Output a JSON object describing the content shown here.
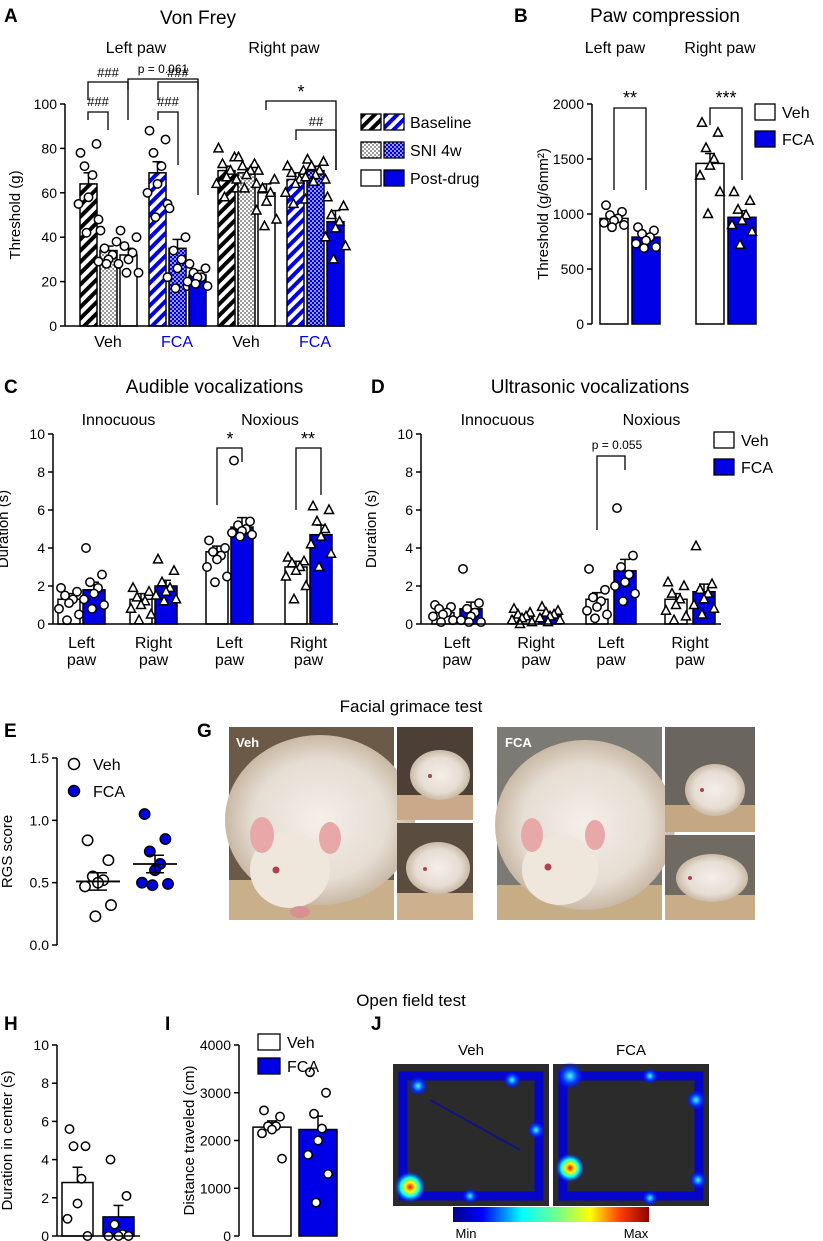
{
  "colors": {
    "fca_blue": "#0000e6",
    "black": "#000000",
    "white": "#ffffff"
  },
  "panels": {
    "A": {
      "letter": "A",
      "title": "Von Frey",
      "group_labels": [
        "Left paw",
        "Right paw"
      ],
      "x_labels": [
        "Veh",
        "FCA",
        "Veh",
        "FCA"
      ],
      "annotations": [
        "###",
        "###",
        "###",
        "###",
        "p = 0.061",
        "*",
        "##"
      ]
    },
    "B": {
      "letter": "B",
      "title": "Paw compression",
      "group_labels": [
        "Left paw",
        "Right paw"
      ],
      "annotations": [
        "**",
        "***"
      ]
    },
    "C": {
      "letter": "C",
      "title": "Audible vocalizations",
      "group_labels": [
        "Innocuous",
        "Noxious"
      ],
      "x_labels": [
        "Left\npaw",
        "Right\npaw",
        "Left\npaw",
        "Right\npaw"
      ],
      "annotations": [
        "*",
        "**"
      ]
    },
    "D": {
      "letter": "D",
      "title": "Ultrasonic vocalizations",
      "group_labels": [
        "Innocuous",
        "Noxious"
      ],
      "x_labels": [
        "Left\npaw",
        "Right\npaw",
        "Left\npaw",
        "Right\npaw"
      ],
      "annotations": [
        "p = 0.055"
      ]
    },
    "E": {
      "letter": "E"
    },
    "G": {
      "letter": "G",
      "photo_labels": [
        "Veh",
        "FCA"
      ]
    },
    "H": {
      "letter": "H"
    },
    "I": {
      "letter": "I"
    },
    "J": {
      "letter": "J",
      "map_labels": [
        "Veh",
        "FCA"
      ],
      "colorbar": {
        "min": "Min",
        "max": "Max"
      }
    }
  },
  "section_titles": {
    "grimace": "Facial grimace test",
    "open_field": "Open field test"
  },
  "legends": {
    "A": [
      "Baseline",
      "SNI 4w",
      "Post-drug"
    ],
    "B": [
      "Veh",
      "FCA"
    ],
    "D": [
      "Veh",
      "FCA"
    ],
    "E": [
      "Veh",
      "FCA"
    ],
    "I": [
      "Veh",
      "FCA"
    ]
  },
  "chart_data": [
    {
      "id": "A",
      "type": "bar",
      "title": "Von Frey",
      "ylabel": "Threshold (g)",
      "ylim": [
        0,
        100
      ],
      "yticks": [
        0,
        20,
        40,
        60,
        80,
        100
      ],
      "categories": [
        "Left paw Veh",
        "Left paw FCA",
        "Right paw Veh",
        "Right paw FCA"
      ],
      "series": [
        {
          "name": "Baseline",
          "values": [
            64,
            69,
            70,
            66
          ]
        },
        {
          "name": "SNI 4w",
          "values": [
            34,
            35,
            69,
            70
          ]
        },
        {
          "name": "Post-drug",
          "values": [
            32,
            23,
            60,
            47
          ]
        }
      ],
      "points": [
        [
          64,
          [
            78,
            82,
            72,
            68,
            58,
            55,
            48,
            42
          ]
        ],
        [
          34,
          [
            43,
            38,
            35,
            32,
            30,
            29,
            28,
            28
          ]
        ],
        [
          32,
          [
            43,
            40,
            36,
            33,
            30,
            28,
            24,
            24
          ]
        ],
        [
          69,
          [
            88,
            84,
            78,
            72,
            64,
            60,
            55,
            49
          ]
        ],
        [
          35,
          [
            53,
            40,
            34,
            30,
            26,
            22,
            18,
            17
          ]
        ],
        [
          23,
          [
            28,
            26,
            24,
            22,
            22,
            20,
            18,
            19
          ]
        ],
        [
          70,
          [
            80,
            76,
            73,
            70,
            67,
            64,
            62,
            58
          ]
        ],
        [
          69,
          [
            76,
            73,
            72,
            70,
            68,
            66,
            64,
            62
          ]
        ],
        [
          60,
          [
            70,
            66,
            62,
            60,
            56,
            52,
            48,
            45
          ]
        ],
        [
          66,
          [
            72,
            70,
            69,
            66,
            64,
            60,
            57,
            55
          ]
        ],
        [
          70,
          [
            75,
            74,
            72,
            70,
            68,
            67,
            66,
            65
          ]
        ],
        [
          47,
          [
            58,
            54,
            50,
            47,
            44,
            40,
            36,
            30
          ]
        ]
      ],
      "markers": [
        "circle",
        "circle",
        "circle",
        "circle",
        "circle",
        "circle",
        "triangle",
        "triangle",
        "triangle",
        "triangle",
        "triangle",
        "triangle"
      ],
      "errors": [
        5,
        2,
        3,
        5,
        4,
        2,
        2,
        2,
        4,
        3,
        2,
        5
      ]
    },
    {
      "id": "B",
      "type": "bar",
      "title": "Paw compression",
      "ylabel": "Threshold (g/6mm2)",
      "ylim": [
        0,
        2000
      ],
      "yticks": [
        0,
        500,
        1000,
        1500,
        2000
      ],
      "categories": [
        "Left paw",
        "Right paw"
      ],
      "series": [
        {
          "name": "Veh",
          "values": [
            960,
            1460
          ]
        },
        {
          "name": "FCA",
          "values": [
            790,
            970
          ]
        }
      ],
      "points": [
        [
          960,
          [
            1080,
            1020,
            990,
            960,
            940,
            920,
            900,
            880
          ]
        ],
        [
          790,
          [
            880,
            850,
            820,
            790,
            760,
            730,
            700,
            690
          ]
        ],
        [
          1460,
          [
            1830,
            1740,
            1600,
            1500,
            1440,
            1350,
            1200,
            1000
          ]
        ],
        [
          970,
          [
            1200,
            1120,
            1040,
            990,
            940,
            900,
            840,
            720
          ]
        ]
      ],
      "markers": [
        "circle",
        "circle",
        "triangle",
        "triangle"
      ],
      "errors": [
        30,
        30,
        90,
        60
      ]
    },
    {
      "id": "C",
      "type": "bar",
      "title": "Audible vocalizations",
      "ylabel": "Duration (s)",
      "ylim": [
        0,
        10
      ],
      "yticks": [
        0,
        2,
        4,
        6,
        8,
        10
      ],
      "categories": [
        "Innocuous Left paw",
        "Innocuous Right paw",
        "Noxious Left paw",
        "Noxious Right paw"
      ],
      "series": [
        {
          "name": "Veh",
          "values": [
            1.3,
            1.3,
            3.8,
            3.0
          ]
        },
        {
          "name": "FCA",
          "values": [
            1.8,
            2.0,
            5.1,
            4.7
          ]
        }
      ],
      "points": [
        [
          1.3,
          [
            1.9,
            1.7,
            1.5,
            1.3,
            1.1,
            0.8,
            0.5,
            0.2
          ]
        ],
        [
          1.8,
          [
            4.0,
            2.6,
            2.2,
            1.9,
            1.6,
            1.3,
            1.0,
            0.8
          ]
        ],
        [
          1.3,
          [
            1.9,
            1.7,
            1.4,
            1.2,
            1.0,
            0.8,
            0.5,
            0.2
          ]
        ],
        [
          2.0,
          [
            3.4,
            2.8,
            2.2,
            1.9,
            1.7,
            1.5,
            1.3,
            1.2
          ]
        ],
        [
          3.8,
          [
            4.4,
            4.0,
            3.8,
            3.6,
            3.4,
            3.0,
            2.5,
            2.2
          ]
        ],
        [
          5.1,
          [
            8.6,
            5.4,
            5.2,
            5.0,
            4.9,
            4.8,
            4.7,
            4.6
          ]
        ],
        [
          3.0,
          [
            3.5,
            3.3,
            3.2,
            3.0,
            2.8,
            2.5,
            2.0,
            1.3
          ]
        ],
        [
          4.7,
          [
            6.2,
            6.0,
            5.4,
            5.0,
            4.6,
            4.2,
            3.7,
            3.0
          ]
        ]
      ],
      "markers": [
        "circle",
        "circle",
        "triangle",
        "triangle",
        "circle",
        "circle",
        "triangle",
        "triangle"
      ],
      "errors": [
        0.3,
        0.4,
        0.3,
        0.3,
        0.3,
        0.5,
        0.3,
        0.5
      ]
    },
    {
      "id": "D",
      "type": "bar",
      "title": "Ultrasonic vocalizations",
      "ylabel": "Duration (s)",
      "ylim": [
        0,
        10
      ],
      "yticks": [
        0,
        2,
        4,
        6,
        8,
        10
      ],
      "categories": [
        "Innocuous Left paw",
        "Innocuous Right paw",
        "Noxious Left paw",
        "Noxious Right paw"
      ],
      "series": [
        {
          "name": "Veh",
          "values": [
            0.6,
            0.4,
            1.3,
            1.3
          ]
        },
        {
          "name": "FCA",
          "values": [
            0.8,
            0.5,
            2.8,
            1.7
          ]
        }
      ],
      "points": [
        [
          0.6,
          [
            1.0,
            0.9,
            0.8,
            0.6,
            0.5,
            0.4,
            0.2,
            0.1
          ]
        ],
        [
          0.8,
          [
            2.9,
            1.1,
            0.8,
            0.6,
            0.4,
            0.2,
            0.1,
            0.1
          ]
        ],
        [
          0.4,
          [
            0.8,
            0.6,
            0.5,
            0.4,
            0.3,
            0.2,
            0.1,
            0.0
          ]
        ],
        [
          0.5,
          [
            0.9,
            0.7,
            0.6,
            0.5,
            0.4,
            0.3,
            0.2,
            0.1
          ]
        ],
        [
          1.3,
          [
            2.9,
            1.8,
            1.4,
            1.2,
            0.9,
            0.7,
            0.5,
            0.3
          ]
        ],
        [
          2.8,
          [
            6.1,
            3.6,
            3.0,
            2.6,
            2.2,
            2.0,
            1.6,
            1.2
          ]
        ],
        [
          1.3,
          [
            2.2,
            2.0,
            1.6,
            1.3,
            1.0,
            0.7,
            0.4,
            0.2
          ]
        ],
        [
          1.7,
          [
            4.1,
            2.1,
            1.8,
            1.6,
            1.3,
            1.0,
            0.8,
            0.5
          ]
        ]
      ],
      "markers": [
        "circle",
        "circle",
        "triangle",
        "triangle",
        "circle",
        "circle",
        "triangle",
        "triangle"
      ],
      "errors": [
        0.15,
        0.35,
        0.1,
        0.1,
        0.35,
        0.6,
        0.3,
        0.4
      ]
    },
    {
      "id": "E",
      "type": "scatter",
      "ylabel": "RGS score",
      "ylim": [
        0,
        1.5
      ],
      "yticks": [
        "0.0",
        "0.5",
        "1.0",
        "1.5"
      ],
      "categories": [
        "Veh",
        "FCA"
      ],
      "means": [
        0.51,
        0.65
      ],
      "errors": [
        0.07,
        0.07
      ],
      "points": [
        [
          0.84,
          0.68,
          0.55,
          0.52,
          0.5,
          0.47,
          0.32,
          0.23
        ],
        [
          1.05,
          0.85,
          0.75,
          0.65,
          0.6,
          0.5,
          0.49,
          0.48
        ]
      ]
    },
    {
      "id": "H",
      "type": "bar",
      "ylabel": "Duration in center (s)",
      "ylim": [
        0,
        10
      ],
      "yticks": [
        0,
        2,
        4,
        6,
        8,
        10
      ],
      "categories": [
        "Veh",
        "FCA"
      ],
      "series": [
        {
          "name": "Duration",
          "values": [
            2.8,
            1.0
          ]
        }
      ],
      "points": [
        [
          5.6,
          4.7,
          4.7,
          3.0,
          1.7,
          0.9,
          0.0
        ],
        [
          4.0,
          2.1,
          0.6,
          0.1,
          0.0,
          0.0,
          0.0
        ]
      ],
      "errors": [
        0.8,
        0.6
      ]
    },
    {
      "id": "I",
      "type": "bar",
      "ylabel": "Distance traveled (cm)",
      "ylim": [
        0,
        4000
      ],
      "yticks": [
        0,
        1000,
        2000,
        3000,
        4000
      ],
      "categories": [
        "Veh",
        "FCA"
      ],
      "series": [
        {
          "name": "Distance",
          "values": [
            2280,
            2230
          ]
        }
      ],
      "points": [
        [
          2630,
          2500,
          2300,
          2300,
          2230,
          2150,
          1620
        ],
        [
          3430,
          3000,
          2560,
          2250,
          2000,
          1700,
          1300,
          700
        ]
      ],
      "errors": [
        130,
        280
      ]
    }
  ]
}
